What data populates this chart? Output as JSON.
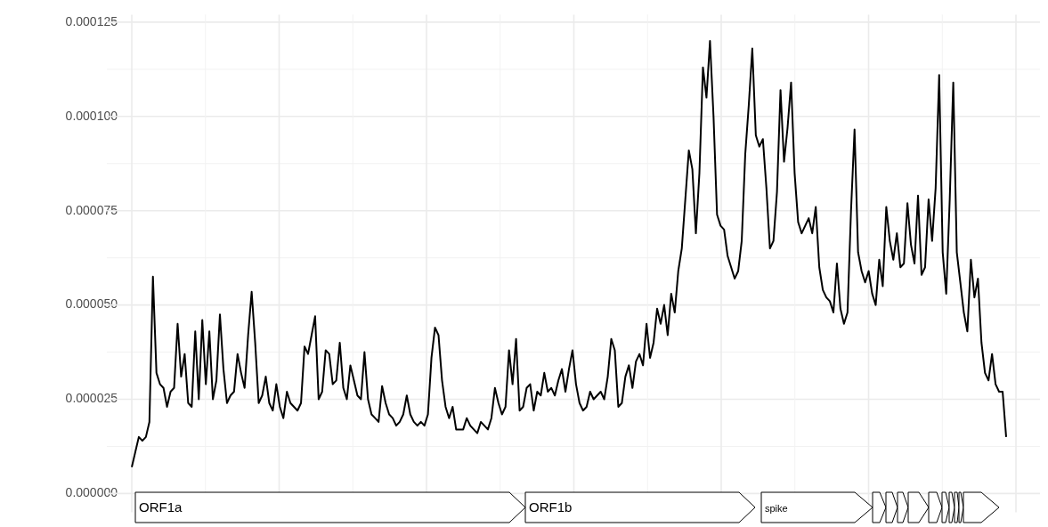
{
  "chart_data": {
    "type": "line",
    "grid": true,
    "tick_labels": "y",
    "annotations": [
      "ORF1a",
      "ORF1b",
      "spike"
    ],
    "ylim": [
      -5e-06,
      0.000127
    ],
    "yticks": [
      {
        "value": 0,
        "label": "0.000000"
      },
      {
        "value": 2.5e-05,
        "label": "0.000025"
      },
      {
        "value": 5e-05,
        "label": "0.000050"
      },
      {
        "value": 7.5e-05,
        "label": "0.000075"
      },
      {
        "value": 0.0001,
        "label": "0.000100"
      },
      {
        "value": 0.000125,
        "label": "0.000125"
      }
    ],
    "categories": [
      null,
      null,
      null,
      null,
      null,
      null,
      null,
      null,
      null,
      null,
      null,
      null,
      null,
      null,
      null,
      null,
      null,
      null,
      null,
      null,
      null,
      null,
      null,
      null,
      null,
      null,
      null,
      null,
      null,
      null,
      null,
      null,
      null,
      null,
      null,
      null,
      null,
      null,
      null,
      null,
      null,
      null,
      null,
      null,
      null,
      null,
      null,
      null,
      null,
      null,
      null,
      null,
      null,
      null,
      null,
      null,
      null,
      null,
      null,
      null,
      null,
      null,
      null,
      null,
      null,
      null,
      null,
      null,
      null,
      null,
      null,
      null,
      null,
      null,
      null,
      null,
      null,
      null,
      null,
      null,
      null,
      null,
      null,
      null,
      null,
      null,
      null,
      null,
      null,
      null,
      null,
      null,
      null,
      null,
      null,
      null,
      null,
      null,
      null,
      null,
      null,
      null,
      null,
      null,
      null,
      null,
      null,
      null,
      null,
      null,
      null,
      null,
      null,
      null,
      null,
      null,
      null,
      null,
      null,
      null,
      null,
      null,
      null,
      null,
      null,
      null,
      null,
      null,
      null,
      null,
      null,
      null,
      null,
      null,
      null,
      null,
      null,
      null,
      null,
      null,
      null,
      null,
      null,
      null,
      null,
      null,
      null,
      null,
      null,
      null,
      null,
      null,
      null,
      null,
      null,
      null,
      null,
      null,
      null,
      null,
      null,
      null,
      null,
      null,
      null,
      null,
      null,
      null,
      null,
      null,
      null,
      null,
      null,
      null,
      null,
      null,
      null,
      null,
      null,
      null,
      null,
      null,
      null,
      null,
      null,
      null,
      null,
      null,
      null,
      null,
      null,
      null,
      null,
      null,
      null,
      null,
      null,
      null,
      null,
      null,
      null,
      null,
      null,
      null,
      null,
      null,
      null,
      null,
      null,
      null,
      null,
      null,
      null,
      null,
      null,
      null,
      null,
      null,
      null,
      null,
      null,
      null,
      null,
      null,
      null,
      null,
      null,
      null,
      null,
      null,
      null,
      null,
      null,
      null,
      null,
      null,
      null,
      null,
      null,
      null,
      null,
      null,
      null,
      null,
      null,
      null,
      null,
      null,
      null
    ],
    "series": [
      {
        "color": "#000000",
        "values": [
          7e-06,
          1.1e-05,
          1.5e-05,
          1.4e-05,
          1.5e-05,
          1.9e-05,
          5.75e-05,
          3.2e-05,
          2.9e-05,
          2.8e-05,
          2.3e-05,
          2.7e-05,
          2.8e-05,
          4.5e-05,
          3.1e-05,
          3.7e-05,
          2.4e-05,
          2.3e-05,
          4.3e-05,
          2.5e-05,
          4.6e-05,
          2.9e-05,
          4.3e-05,
          2.5e-05,
          3e-05,
          4.75e-05,
          3.3e-05,
          2.4e-05,
          2.6e-05,
          2.7e-05,
          3.7e-05,
          3.2e-05,
          2.8e-05,
          4.2e-05,
          5.35e-05,
          4e-05,
          2.4e-05,
          2.6e-05,
          3.1e-05,
          2.4e-05,
          2.2e-05,
          2.9e-05,
          2.3e-05,
          2e-05,
          2.7e-05,
          2.4e-05,
          2.3e-05,
          2.2e-05,
          2.4e-05,
          3.9e-05,
          3.7e-05,
          4.2e-05,
          4.7e-05,
          2.5e-05,
          2.7e-05,
          3.8e-05,
          3.7e-05,
          2.9e-05,
          3e-05,
          4e-05,
          2.8e-05,
          2.5e-05,
          3.4e-05,
          3e-05,
          2.6e-05,
          2.5e-05,
          3.75e-05,
          2.5e-05,
          2.1e-05,
          2e-05,
          1.9e-05,
          2.85e-05,
          2.4e-05,
          2.1e-05,
          2e-05,
          1.8e-05,
          1.9e-05,
          2.1e-05,
          2.6e-05,
          2.1e-05,
          1.9e-05,
          1.8e-05,
          1.9e-05,
          1.8e-05,
          2.1e-05,
          3.6e-05,
          4.4e-05,
          4.2e-05,
          3e-05,
          2.3e-05,
          2e-05,
          2.3e-05,
          1.7e-05,
          1.7e-05,
          1.7e-05,
          2e-05,
          1.8e-05,
          1.7e-05,
          1.6e-05,
          1.9e-05,
          1.8e-05,
          1.7e-05,
          2e-05,
          2.8e-05,
          2.4e-05,
          2.1e-05,
          2.3e-05,
          3.8e-05,
          2.9e-05,
          4.1e-05,
          2.2e-05,
          2.3e-05,
          2.8e-05,
          2.9e-05,
          2.2e-05,
          2.7e-05,
          2.6e-05,
          3.2e-05,
          2.7e-05,
          2.8e-05,
          2.6e-05,
          3e-05,
          3.3e-05,
          2.7e-05,
          3.3e-05,
          3.8e-05,
          2.9e-05,
          2.4e-05,
          2.2e-05,
          2.3e-05,
          2.7e-05,
          2.5e-05,
          2.6e-05,
          2.7e-05,
          2.5e-05,
          3.1e-05,
          4.1e-05,
          3.8e-05,
          2.3e-05,
          2.4e-05,
          3.1e-05,
          3.4e-05,
          2.8e-05,
          3.5e-05,
          3.7e-05,
          3.4e-05,
          4.5e-05,
          3.6e-05,
          4e-05,
          4.9e-05,
          4.5e-05,
          5e-05,
          4.2e-05,
          5.3e-05,
          4.8e-05,
          5.9e-05,
          6.5e-05,
          7.8e-05,
          9.1e-05,
          8.6e-05,
          6.9e-05,
          8.5e-05,
          0.000113,
          0.000105,
          0.00012,
          0.0001,
          7.4e-05,
          7.1e-05,
          7e-05,
          6.3e-05,
          6e-05,
          5.7e-05,
          5.9e-05,
          6.7e-05,
          9e-05,
          0.000103,
          0.000118,
          9.5e-05,
          9.2e-05,
          9.4e-05,
          8.1e-05,
          6.5e-05,
          6.7e-05,
          8e-05,
          0.000107,
          8.8e-05,
          9.7e-05,
          0.000109,
          8.5e-05,
          7.2e-05,
          6.9e-05,
          7.1e-05,
          7.3e-05,
          6.9e-05,
          7.6e-05,
          6e-05,
          5.4e-05,
          5.2e-05,
          5.1e-05,
          4.8e-05,
          6.1e-05,
          4.9e-05,
          4.5e-05,
          4.8e-05,
          7.5e-05,
          9.65e-05,
          6.4e-05,
          5.9e-05,
          5.6e-05,
          5.9e-05,
          5.3e-05,
          5e-05,
          6.2e-05,
          5.5e-05,
          7.6e-05,
          6.7e-05,
          6.2e-05,
          6.9e-05,
          6e-05,
          6.1e-05,
          7.7e-05,
          6.6e-05,
          6.1e-05,
          7.9e-05,
          5.8e-05,
          6e-05,
          7.8e-05,
          6.7e-05,
          8.1e-05,
          0.000111,
          6.4e-05,
          5.3e-05,
          7.8e-05,
          0.000109,
          6.4e-05,
          5.6e-05,
          4.8e-05,
          4.3e-05,
          6.2e-05,
          5.2e-05,
          5.7e-05,
          4e-05,
          3.2e-05,
          3e-05,
          3.7e-05,
          2.9e-05,
          2.7e-05,
          2.7e-05,
          1.5e-05
        ]
      }
    ]
  }
}
